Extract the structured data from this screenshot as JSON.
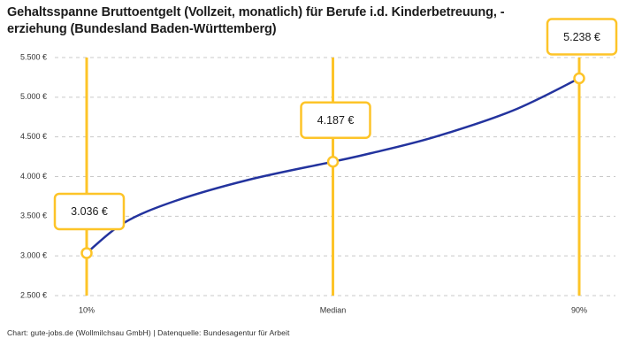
{
  "header": {
    "title_line1": "Gehaltsspanne Bruttoentgelt (Vollzeit, monatlich) für Berufe i.d. Kinderbetreuung, -",
    "title_line2": "erziehung (Bundesland Baden-Württemberg)"
  },
  "footer": {
    "credit": "Chart: gute-jobs.de (Wollmilchsau GmbH) | Datenquelle: Bundesagentur für Arbeit"
  },
  "colors": {
    "accent_yellow": "#FDC428",
    "curve_blue": "#23339E",
    "grid_gray": "#C9C9C9",
    "text_dark": "#1A1A1A",
    "text_muted": "#333333",
    "callout_bg": "#FFFFFF"
  },
  "chart_data": {
    "type": "line",
    "title": "Gehaltsspanne Bruttoentgelt (Vollzeit, monatlich) für Berufe i.d. Kinderbetreuung, -erziehung (Bundesland Baden-Württemberg)",
    "xlabel": "",
    "ylabel": "",
    "ylim": [
      2500,
      5500
    ],
    "grid": "dashed-horizontal",
    "legend": "none",
    "currency": "€",
    "y_ticks": [
      {
        "value": 5500,
        "label": "5.500 €"
      },
      {
        "value": 5000,
        "label": "5.000 €"
      },
      {
        "value": 4500,
        "label": "4.500 €"
      },
      {
        "value": 4000,
        "label": "4.000 €"
      },
      {
        "value": 3500,
        "label": "3.500 €"
      },
      {
        "value": 3000,
        "label": "3.000 €"
      },
      {
        "value": 2500,
        "label": "2.500 €"
      }
    ],
    "x_tick_labels": [
      "10%",
      "Median",
      "90%"
    ],
    "series": [
      {
        "name": "Bruttoentgelt",
        "color": "#23339E"
      }
    ],
    "percentiles": [
      {
        "label": "10%",
        "value": 3036,
        "display": "3.036 €",
        "x_frac": 0
      },
      {
        "label": "Median",
        "value": 4187,
        "display": "4.187 €",
        "x_frac": 0.5
      },
      {
        "label": "90%",
        "value": 5238,
        "display": "5.238 €",
        "x_frac": 1
      }
    ],
    "curve_points": [
      {
        "x_frac": 0.0,
        "value": 3036
      },
      {
        "x_frac": 0.075,
        "value": 3415
      },
      {
        "x_frac": 0.18,
        "value": 3693
      },
      {
        "x_frac": 0.33,
        "value": 3961
      },
      {
        "x_frac": 0.5,
        "value": 4187
      },
      {
        "x_frac": 0.578,
        "value": 4295
      },
      {
        "x_frac": 0.707,
        "value": 4500
      },
      {
        "x_frac": 0.865,
        "value": 4831
      },
      {
        "x_frac": 1.0,
        "value": 5238
      }
    ]
  }
}
